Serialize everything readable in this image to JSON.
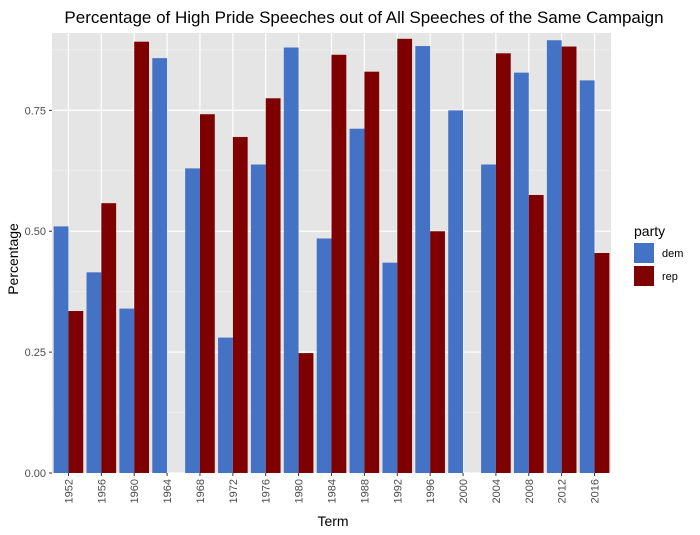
{
  "chart_data": {
    "type": "bar",
    "title": "Percentage of High Pride Speeches out of All Speeches of the Same Campaign",
    "xlabel": "Term",
    "ylabel": "Percentage",
    "categories": [
      "1952",
      "1956",
      "1960",
      "1964",
      "1968",
      "1972",
      "1976",
      "1980",
      "1984",
      "1988",
      "1992",
      "1996",
      "2000",
      "2004",
      "2008",
      "2012",
      "2016"
    ],
    "series": [
      {
        "name": "dem",
        "color": "#4472C4",
        "values": [
          0.51,
          0.415,
          0.34,
          0.858,
          0.63,
          0.28,
          0.638,
          0.88,
          0.485,
          0.712,
          0.435,
          0.883,
          0.75,
          0.638,
          0.828,
          0.895,
          0.812
        ]
      },
      {
        "name": "rep",
        "color": "#7F0000",
        "values": [
          0.335,
          0.558,
          0.892,
          null,
          0.742,
          0.695,
          0.775,
          0.248,
          0.865,
          0.83,
          0.898,
          0.5,
          null,
          0.868,
          0.575,
          0.882,
          0.455
        ]
      }
    ],
    "ylim": [
      0,
      0.91
    ],
    "yticks": [
      0,
      0.25,
      0.5,
      0.75
    ],
    "ytick_labels": [
      "0.00",
      "0.25",
      "0.50",
      "0.75"
    ],
    "legend_title": "party",
    "legend_position": "right",
    "grid": true,
    "panel_background": "#E5E5E5"
  }
}
